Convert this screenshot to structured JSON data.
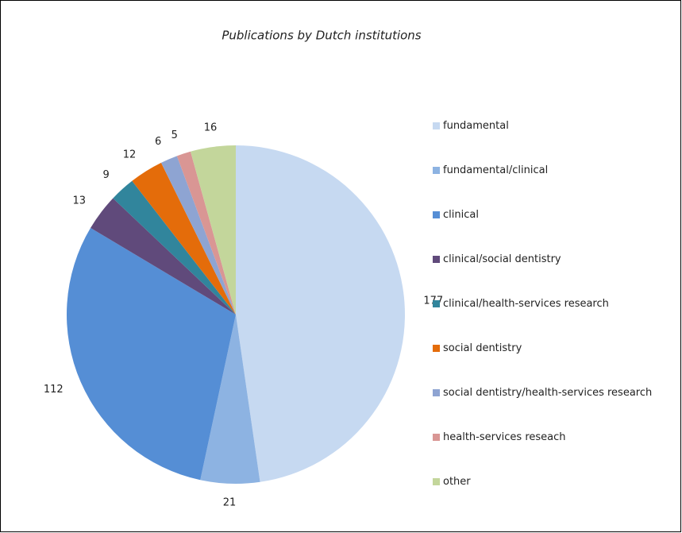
{
  "chart_data": {
    "type": "pie",
    "title": "Publications by Dutch institutions",
    "categories": [
      "fundamental",
      "fundamental/clinical",
      "clinical",
      "clinical/social dentistry",
      "clinical/health-services research",
      "social dentistry",
      "social dentistry/health-services research",
      "health-services reseach",
      "other"
    ],
    "values": [
      177,
      21,
      112,
      13,
      9,
      12,
      6,
      5,
      16
    ],
    "colors": [
      "#c6d9f1",
      "#8db3e2",
      "#558ed5",
      "#604a7b",
      "#31859c",
      "#e46c0a",
      "#8ea4d2",
      "#d99694",
      "#c3d69b"
    ]
  }
}
